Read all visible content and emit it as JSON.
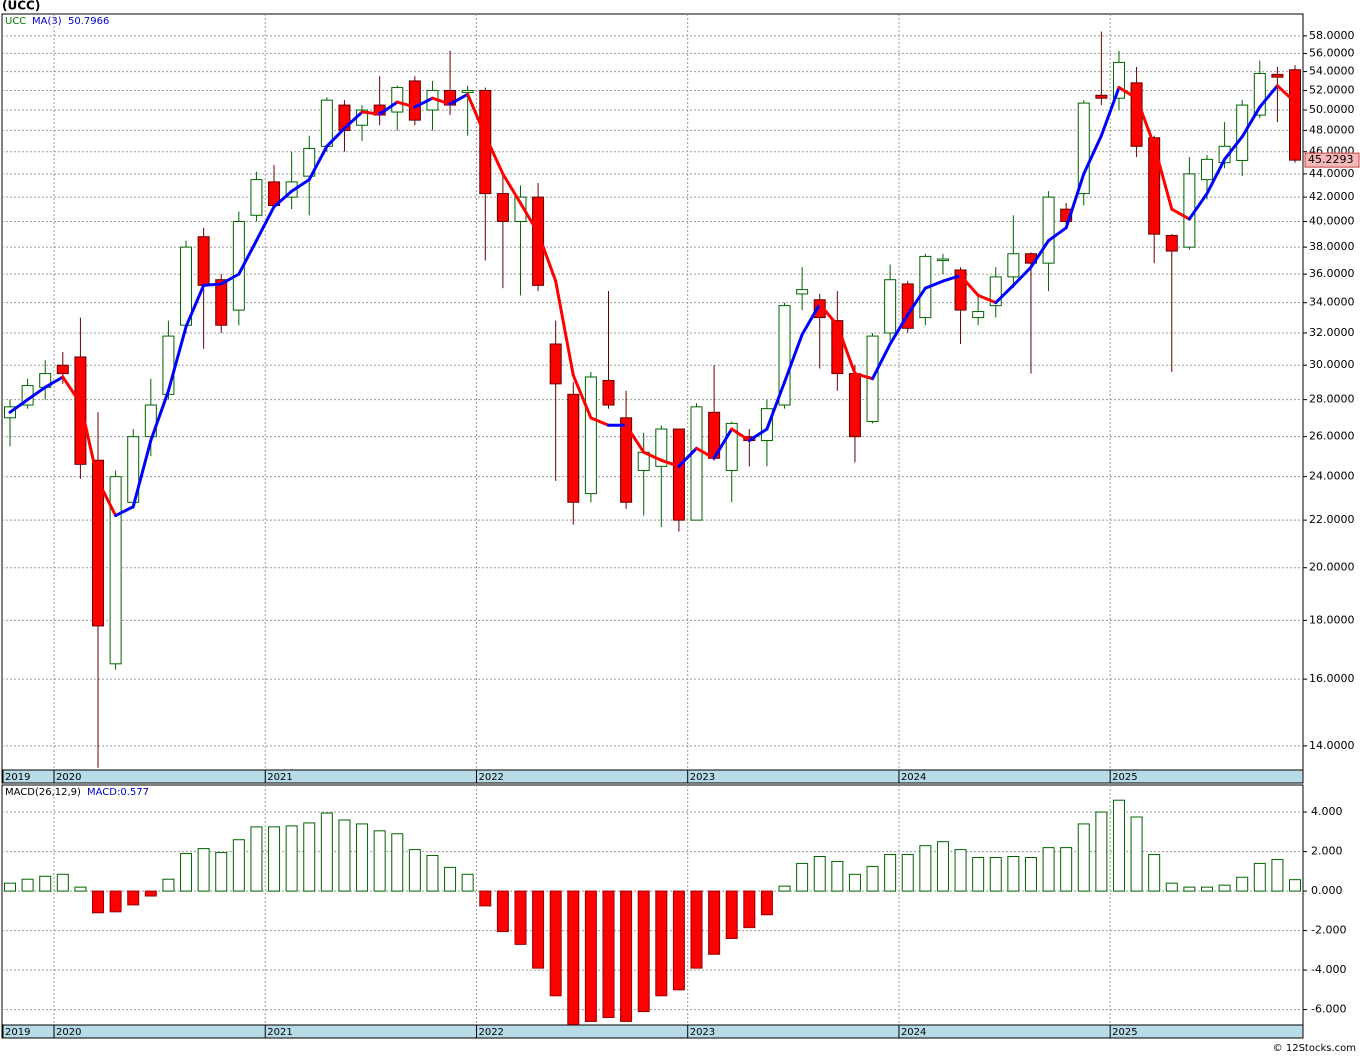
{
  "chart_data": [
    {
      "type": "candlestick",
      "title": "(UCC)",
      "ticker": "UCC",
      "log_scale": true,
      "grid": true,
      "up_color": "#006400",
      "down_color": "#ff0000",
      "categories": [
        "2019",
        null,
        null,
        "2020",
        null,
        null,
        null,
        null,
        null,
        null,
        null,
        null,
        null,
        null,
        null,
        "2021",
        null,
        null,
        null,
        null,
        null,
        null,
        null,
        null,
        null,
        null,
        null,
        "2022",
        null,
        null,
        null,
        null,
        null,
        null,
        null,
        null,
        null,
        null,
        null,
        "2023",
        null,
        null,
        null,
        null,
        null,
        null,
        null,
        null,
        null,
        null,
        null,
        "2024",
        null,
        null,
        null,
        null,
        null,
        null,
        null,
        null,
        null,
        null,
        null,
        "2025",
        null,
        null,
        null,
        null,
        null,
        null,
        null,
        null,
        null,
        null
      ],
      "open": [
        27.0,
        27.7,
        28.7,
        30.0,
        30.5,
        24.8,
        16.5,
        22.8,
        26.0,
        28.3,
        32.5,
        38.8,
        35.6,
        33.5,
        40.5,
        43.3,
        42.0,
        43.8,
        46.5,
        50.5,
        48.5,
        50.5,
        49.8,
        53.0,
        50.0,
        52.0,
        51.8,
        52.0,
        42.3,
        40.0,
        42.0,
        31.3,
        28.3,
        23.2,
        29.1,
        27.0,
        24.3,
        24.5,
        26.4,
        22.0,
        27.3,
        24.3,
        26.0,
        25.8,
        27.7,
        34.6,
        34.2,
        32.8,
        29.5,
        26.8,
        32.0,
        35.3,
        33.0,
        37.0,
        36.3,
        33.0,
        33.8,
        35.8,
        37.5,
        36.8,
        41.0,
        42.3,
        51.5,
        51.2,
        52.8,
        47.3,
        38.9,
        38.0,
        43.5,
        45.0,
        45.2,
        49.5,
        53.7,
        54.2
      ],
      "high": [
        28.0,
        29.2,
        30.3,
        30.8,
        33.0,
        27.3,
        24.3,
        26.4,
        29.2,
        32.8,
        38.5,
        39.5,
        36.0,
        40.8,
        44.2,
        44.8,
        46.0,
        47.5,
        51.3,
        51.0,
        50.5,
        53.5,
        52.5,
        53.5,
        53.0,
        56.3,
        52.5,
        52.3,
        44.2,
        43.0,
        43.2,
        32.8,
        29.0,
        29.6,
        34.8,
        28.5,
        26.2,
        26.6,
        26.4,
        27.8,
        30.0,
        26.8,
        26.4,
        28.0,
        34.0,
        36.5,
        34.6,
        34.8,
        30.0,
        32.0,
        36.7,
        35.5,
        37.5,
        37.5,
        36.5,
        34.5,
        36.5,
        40.5,
        37.6,
        42.5,
        41.5,
        51.0,
        58.5,
        56.3,
        54.5,
        47.5,
        39.0,
        45.5,
        45.7,
        48.8,
        51.0,
        55.2,
        54.5,
        54.7
      ],
      "low": [
        25.5,
        27.5,
        28.0,
        28.9,
        23.9,
        13.4,
        16.3,
        22.5,
        25.0,
        28.0,
        32.0,
        31.0,
        32.0,
        32.5,
        40.0,
        41.0,
        41.0,
        40.5,
        46.0,
        46.0,
        47.0,
        48.5,
        48.0,
        48.5,
        48.0,
        49.5,
        47.5,
        37.0,
        35.0,
        34.5,
        34.8,
        23.8,
        21.8,
        22.8,
        27.5,
        22.5,
        22.2,
        21.7,
        21.5,
        22.0,
        24.8,
        22.8,
        24.5,
        24.5,
        27.5,
        33.5,
        29.8,
        28.5,
        24.7,
        26.7,
        31.5,
        32.0,
        32.5,
        36.0,
        31.3,
        32.5,
        33.0,
        35.0,
        29.5,
        34.8,
        39.8,
        41.3,
        50.5,
        50.0,
        45.5,
        36.8,
        29.6,
        37.8,
        41.8,
        44.5,
        43.8,
        49.2,
        48.8,
        45.0
      ],
      "close": [
        27.6,
        28.8,
        29.5,
        29.5,
        24.6,
        17.8,
        24.0,
        26.0,
        27.7,
        31.8,
        38.0,
        35.2,
        32.5,
        40.0,
        43.5,
        41.3,
        43.3,
        46.3,
        51.0,
        48.0,
        50.0,
        49.5,
        52.3,
        49.0,
        52.0,
        50.5,
        52.0,
        42.3,
        40.0,
        42.0,
        35.2,
        28.9,
        22.8,
        29.3,
        27.7,
        22.8,
        25.2,
        26.4,
        22.0,
        27.6,
        24.9,
        26.7,
        25.8,
        27.5,
        33.8,
        34.9,
        33.0,
        29.5,
        26.0,
        31.8,
        35.6,
        32.3,
        37.3,
        37.1,
        33.5,
        33.4,
        35.8,
        37.5,
        36.8,
        42.0,
        40.0,
        50.7,
        51.2,
        55.0,
        46.5,
        39.0,
        37.7,
        44.0,
        45.3,
        46.5,
        50.5,
        53.8,
        53.4,
        45.2293
      ],
      "ma": {
        "name": "MA(3)",
        "up_color": "#0000ff",
        "down_color": "#ff0000",
        "values": [
          27.3,
          28.0,
          28.7,
          29.3,
          27.8,
          23.8,
          22.2,
          22.6,
          25.8,
          28.5,
          32.4,
          35.2,
          35.3,
          36.0,
          38.5,
          41.2,
          42.5,
          43.5,
          46.5,
          48.2,
          49.8,
          49.6,
          50.8,
          50.3,
          51.2,
          50.6,
          51.6,
          47.5,
          44.0,
          41.5,
          39.1,
          35.5,
          29.4,
          27.0,
          26.6,
          26.6,
          25.2,
          24.8,
          24.5,
          25.4,
          24.9,
          26.4,
          25.8,
          26.4,
          29.0,
          31.9,
          33.9,
          32.5,
          29.5,
          29.2,
          31.3,
          33.2,
          35.0,
          35.5,
          35.9,
          34.5,
          34.0,
          35.2,
          36.5,
          38.5,
          39.5,
          44.0,
          47.5,
          52.3,
          51.2,
          46.6,
          41.0,
          40.2,
          42.3,
          45.3,
          47.4,
          50.3,
          52.5,
          50.7966
        ]
      },
      "ylim": [
        13.34,
        60.6
      ],
      "yticks": [
        {
          "value": 14,
          "label": "14.0000"
        },
        {
          "value": 16,
          "label": "16.0000"
        },
        {
          "value": 18,
          "label": "18.0000"
        },
        {
          "value": 20,
          "label": "20.0000"
        },
        {
          "value": 22,
          "label": "22.0000"
        },
        {
          "value": 24,
          "label": "24.0000"
        },
        {
          "value": 26,
          "label": "26.0000"
        },
        {
          "value": 28,
          "label": "28.0000"
        },
        {
          "value": 30,
          "label": "30.0000"
        },
        {
          "value": 32,
          "label": "32.0000"
        },
        {
          "value": 34,
          "label": "34.0000"
        },
        {
          "value": 36,
          "label": "36.0000"
        },
        {
          "value": 38,
          "label": "38.0000"
        },
        {
          "value": 40,
          "label": "40.0000"
        },
        {
          "value": 42,
          "label": "42.0000"
        },
        {
          "value": 44,
          "label": "44.0000"
        },
        {
          "value": 46,
          "label": "46.0000"
        },
        {
          "value": 48,
          "label": "48.0000"
        },
        {
          "value": 50,
          "label": "50.0000"
        },
        {
          "value": 52,
          "label": "52.0000"
        },
        {
          "value": 54,
          "label": "54.0000"
        },
        {
          "value": 56,
          "label": "56.0000"
        },
        {
          "value": 58,
          "label": "58.0000"
        }
      ]
    },
    {
      "type": "bar",
      "title": "MACD(26,12,9)",
      "label": "MACD:0.577",
      "grid": true,
      "up_color": "#006400",
      "down_color": "#ff0000",
      "categories": [
        "2019",
        null,
        null,
        "2020",
        null,
        null,
        null,
        null,
        null,
        null,
        null,
        null,
        null,
        null,
        null,
        "2021",
        null,
        null,
        null,
        null,
        null,
        null,
        null,
        null,
        null,
        null,
        null,
        "2022",
        null,
        null,
        null,
        null,
        null,
        null,
        null,
        null,
        null,
        null,
        null,
        "2023",
        null,
        null,
        null,
        null,
        null,
        null,
        null,
        null,
        null,
        null,
        null,
        "2024",
        null,
        null,
        null,
        null,
        null,
        null,
        null,
        null,
        null,
        null,
        null,
        "2025",
        null,
        null,
        null,
        null,
        null,
        null,
        null,
        null,
        null,
        null
      ],
      "values": [
        0.4,
        0.6,
        0.75,
        0.85,
        0.2,
        -1.1,
        -1.05,
        -0.7,
        -0.25,
        0.6,
        1.9,
        2.15,
        1.95,
        2.6,
        3.25,
        3.25,
        3.3,
        3.45,
        3.95,
        3.6,
        3.4,
        3.05,
        2.9,
        2.1,
        1.8,
        1.2,
        0.85,
        -0.75,
        -2.05,
        -2.7,
        -3.9,
        -5.3,
        -6.75,
        -6.6,
        -6.4,
        -6.6,
        -6.1,
        -5.3,
        -5.0,
        -3.9,
        -3.2,
        -2.4,
        -1.85,
        -1.2,
        0.25,
        1.4,
        1.75,
        1.5,
        0.85,
        1.25,
        1.85,
        1.85,
        2.3,
        2.5,
        2.1,
        1.7,
        1.7,
        1.75,
        1.7,
        2.2,
        2.2,
        3.4,
        4.0,
        4.6,
        3.75,
        1.85,
        0.4,
        0.2,
        0.2,
        0.3,
        0.7,
        1.4,
        1.6,
        0.577
      ],
      "ylim": [
        -6.78,
        5.37
      ],
      "yticks": [
        {
          "value": -6,
          "label": "-6.000"
        },
        {
          "value": -4,
          "label": "-4.000"
        },
        {
          "value": -2,
          "label": "-2.000"
        },
        {
          "value": 0,
          "label": "0.000"
        },
        {
          "value": 2,
          "label": "2.000"
        },
        {
          "value": 4,
          "label": "4.000"
        }
      ]
    }
  ],
  "footer": "© 12Stocks.com"
}
